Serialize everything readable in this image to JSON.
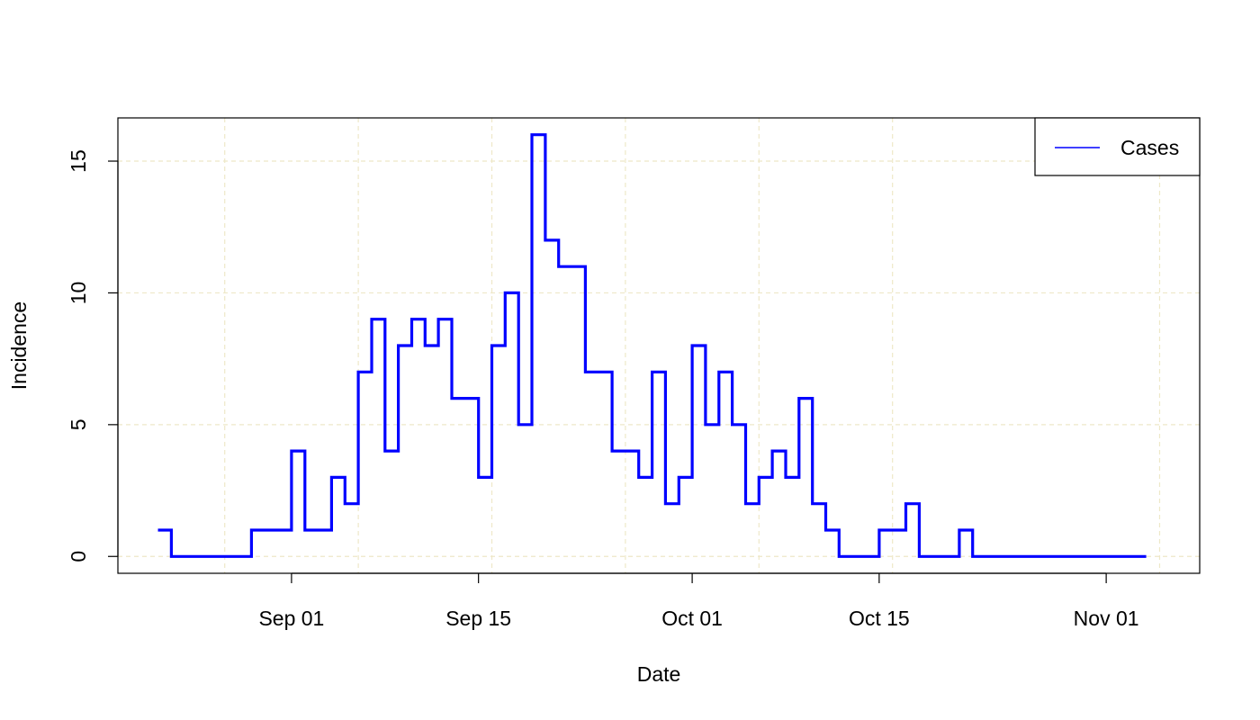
{
  "chart_data": {
    "type": "line",
    "step": true,
    "title": "",
    "xlabel": "Date",
    "ylabel": "Incidence",
    "x_start_date": "2014-08-22",
    "x_end_date": "2014-11-04",
    "xlim": [
      "2014-08-19",
      "2014-11-08"
    ],
    "ylim": [
      -0.64,
      16.64
    ],
    "x_ticks": [
      {
        "date": "2014-09-01",
        "label": "Sep 01"
      },
      {
        "date": "2014-09-15",
        "label": "Sep 15"
      },
      {
        "date": "2014-10-01",
        "label": "Oct 01"
      },
      {
        "date": "2014-10-15",
        "label": "Oct 15"
      },
      {
        "date": "2014-11-01",
        "label": "Nov 01"
      }
    ],
    "x_grid_dates": [
      "2014-08-27",
      "2014-09-06",
      "2014-09-16",
      "2014-09-26",
      "2014-10-06",
      "2014-10-16",
      "2014-11-05"
    ],
    "y_ticks": [
      0,
      5,
      10,
      15
    ],
    "grid": true,
    "grid_color": "#eee8c8",
    "legend_position": "top-right",
    "series": [
      {
        "name": "Cases",
        "color": "#0000ff",
        "values": [
          1,
          0,
          0,
          0,
          0,
          0,
          0,
          1,
          1,
          1,
          4,
          1,
          1,
          3,
          2,
          7,
          9,
          4,
          8,
          9,
          8,
          9,
          6,
          6,
          3,
          8,
          10,
          5,
          16,
          12,
          11,
          11,
          7,
          7,
          4,
          4,
          3,
          7,
          2,
          3,
          8,
          5,
          7,
          5,
          2,
          3,
          4,
          3,
          6,
          2,
          1,
          0,
          0,
          0,
          1,
          1,
          2,
          0,
          0,
          0,
          1,
          0,
          0,
          0,
          0,
          0,
          0,
          0,
          0,
          0,
          0,
          0,
          0,
          0,
          0
        ]
      }
    ]
  }
}
